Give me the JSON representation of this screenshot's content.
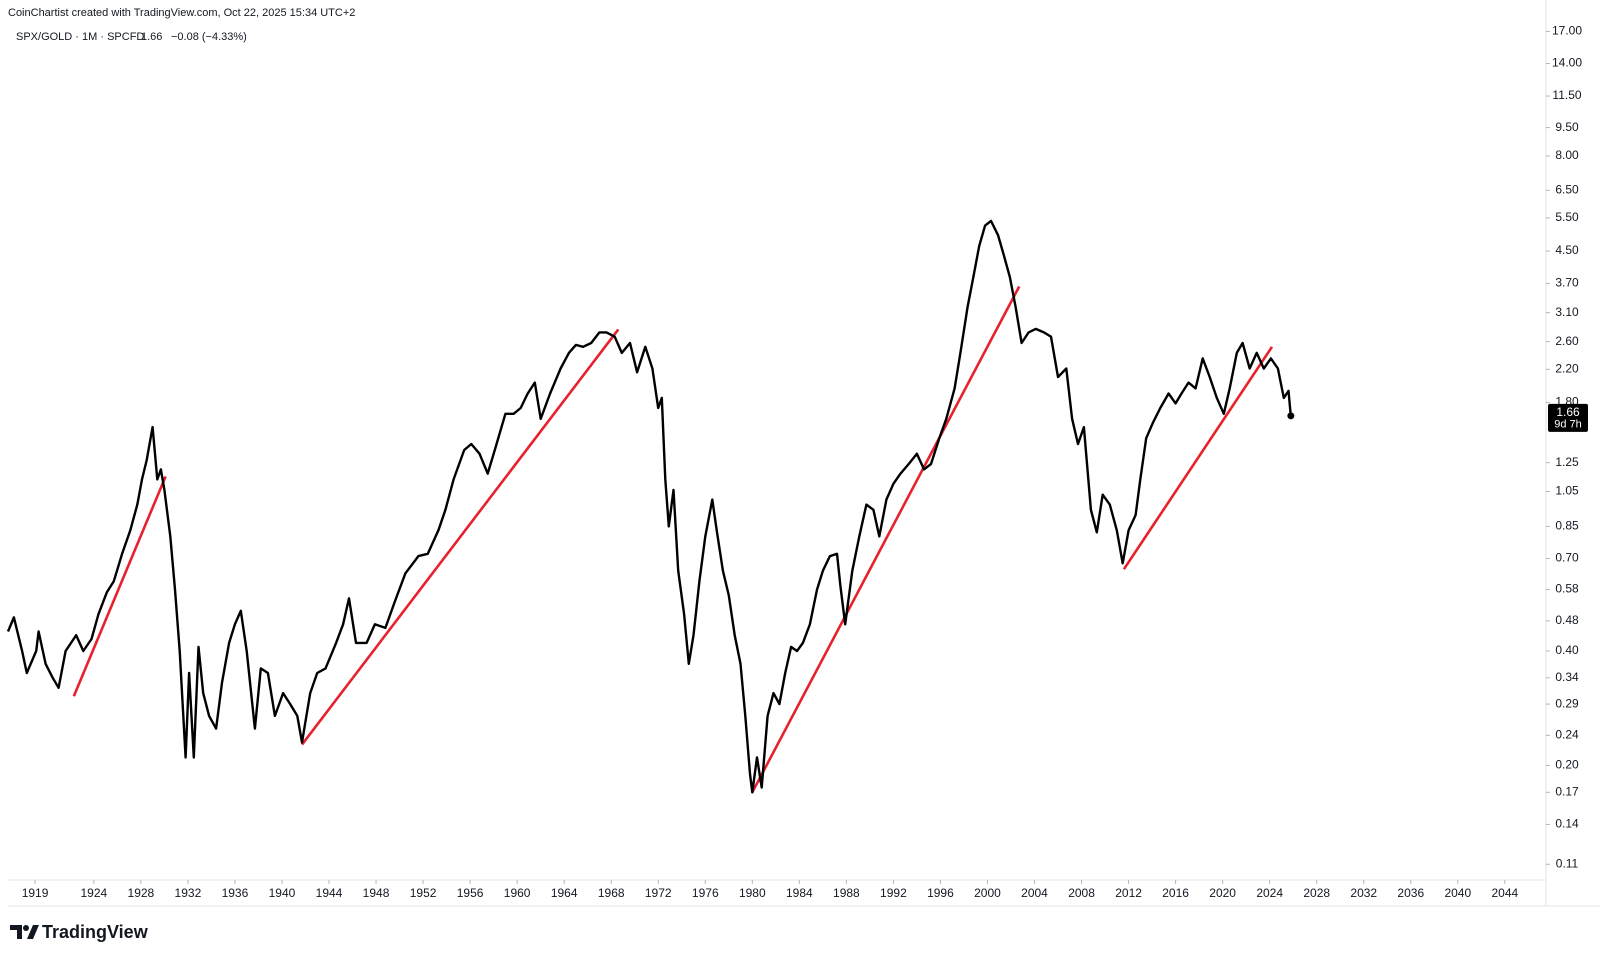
{
  "chart_data": {
    "type": "line",
    "credit": "CoinChartist created with TradingView.com, Oct 22, 2025 15:34 UTC+2",
    "title": "SPX/GOLD · 1M · SPCFD",
    "last": 1.66,
    "change": "−0.08 (−4.33%)",
    "countdown": "9d 7h",
    "brand": "TradingView",
    "log_scale": true,
    "xlim": [
      1916.7,
      2047.5
    ],
    "ylim": [
      0.1,
      18
    ],
    "xticks": [
      1919,
      1924,
      1928,
      1932,
      1936,
      1940,
      1944,
      1948,
      1952,
      1956,
      1960,
      1964,
      1968,
      1972,
      1976,
      1980,
      1984,
      1988,
      1992,
      1996,
      2000,
      2004,
      2008,
      2012,
      2016,
      2020,
      2024,
      2028,
      2032,
      2036,
      2040,
      2044
    ],
    "yticks": [
      {
        "value": 17,
        "label": "17.00"
      },
      {
        "value": 14,
        "label": "14.00"
      },
      {
        "value": 11.5,
        "label": "11.50"
      },
      {
        "value": 9.5,
        "label": "9.50"
      },
      {
        "value": 8,
        "label": "8.00"
      },
      {
        "value": 6.5,
        "label": "6.50"
      },
      {
        "value": 5.5,
        "label": "5.50"
      },
      {
        "value": 4.5,
        "label": "4.50"
      },
      {
        "value": 3.7,
        "label": "3.70"
      },
      {
        "value": 3.1,
        "label": "3.10"
      },
      {
        "value": 2.6,
        "label": "2.60"
      },
      {
        "value": 2.2,
        "label": "2.20"
      },
      {
        "value": 1.8,
        "label": "1.80"
      },
      1.25,
      1.05,
      0.85,
      {
        "value": 0.7,
        "label": "0.70"
      },
      0.58,
      0.48,
      {
        "value": 0.4,
        "label": "0.40"
      },
      0.34,
      0.29,
      0.24,
      {
        "value": 0.2,
        "label": "0.20"
      },
      0.17,
      0.14,
      0.11
    ],
    "series": [
      {
        "name": "SPX/GOLD",
        "color": "#000000",
        "x": [
          1916.7,
          1917.2,
          1917.9,
          1918.3,
          1919.1,
          1919.3,
          1919.9,
          1920.5,
          1921.0,
          1921.6,
          1922.5,
          1923.1,
          1923.8,
          1924.4,
          1925.1,
          1925.7,
          1926.4,
          1927.1,
          1927.7,
          1928.1,
          1928.5,
          1929.0,
          1929.4,
          1929.7,
          1930.0,
          1930.5,
          1930.9,
          1931.3,
          1931.8,
          1932.1,
          1932.5,
          1932.9,
          1933.3,
          1933.8,
          1934.4,
          1934.9,
          1935.5,
          1936.0,
          1936.5,
          1937.0,
          1937.7,
          1938.2,
          1938.8,
          1939.4,
          1940.1,
          1940.7,
          1941.3,
          1941.7,
          1942.4,
          1943.0,
          1943.7,
          1944.6,
          1945.2,
          1945.7,
          1946.3,
          1947.2,
          1947.9,
          1948.8,
          1949.6,
          1950.5,
          1951.6,
          1952.4,
          1953.3,
          1953.9,
          1954.6,
          1955.5,
          1956.1,
          1956.8,
          1957.5,
          1958.1,
          1959.0,
          1959.7,
          1960.3,
          1960.9,
          1961.5,
          1962.0,
          1962.8,
          1963.7,
          1964.4,
          1965.0,
          1965.6,
          1966.3,
          1967.0,
          1967.6,
          1968.3,
          1968.9,
          1969.6,
          1970.2,
          1970.9,
          1971.5,
          1972.0,
          1972.3,
          1972.6,
          1972.9,
          1973.3,
          1973.7,
          1974.2,
          1974.6,
          1975.0,
          1975.5,
          1976.0,
          1976.6,
          1977.0,
          1977.5,
          1978.0,
          1978.5,
          1979.0,
          1979.4,
          1979.8,
          1980.0,
          1980.4,
          1980.8,
          1981.3,
          1981.8,
          1982.3,
          1982.8,
          1983.3,
          1983.8,
          1984.3,
          1984.9,
          1985.5,
          1986.0,
          1986.6,
          1987.2,
          1987.5,
          1987.9,
          1988.5,
          1989.1,
          1989.7,
          1990.3,
          1990.8,
          1991.4,
          1992.0,
          1992.6,
          1993.3,
          1994.0,
          1994.6,
          1995.2,
          1995.9,
          1996.5,
          1997.2,
          1997.7,
          1998.3,
          1998.8,
          1999.3,
          1999.8,
          2000.3,
          2000.9,
          2001.4,
          2001.9,
          2002.4,
          2002.9,
          2003.5,
          2004.1,
          2004.8,
          2005.4,
          2006.0,
          2006.7,
          2007.2,
          2007.7,
          2008.2,
          2008.8,
          2009.3,
          2009.8,
          2010.4,
          2011.0,
          2011.5,
          2012.0,
          2012.6,
          2013.0,
          2013.5,
          2014.1,
          2014.7,
          2015.4,
          2016.0,
          2016.5,
          2017.1,
          2017.7,
          2018.3,
          2018.9,
          2019.5,
          2020.1,
          2020.6,
          2021.2,
          2021.7,
          2022.3,
          2022.9,
          2023.5,
          2024.1,
          2024.7,
          2025.2,
          2025.6,
          2025.8
        ],
        "values": [
          0.45,
          0.49,
          0.4,
          0.35,
          0.4,
          0.45,
          0.37,
          0.34,
          0.32,
          0.4,
          0.44,
          0.4,
          0.43,
          0.5,
          0.57,
          0.61,
          0.72,
          0.83,
          0.97,
          1.13,
          1.27,
          1.55,
          1.13,
          1.2,
          1.06,
          0.8,
          0.58,
          0.4,
          0.21,
          0.35,
          0.21,
          0.41,
          0.31,
          0.27,
          0.25,
          0.33,
          0.42,
          0.47,
          0.51,
          0.4,
          0.25,
          0.36,
          0.35,
          0.27,
          0.31,
          0.29,
          0.27,
          0.23,
          0.31,
          0.35,
          0.36,
          0.42,
          0.47,
          0.55,
          0.42,
          0.42,
          0.47,
          0.46,
          0.54,
          0.64,
          0.71,
          0.72,
          0.83,
          0.94,
          1.13,
          1.35,
          1.4,
          1.32,
          1.17,
          1.35,
          1.68,
          1.68,
          1.74,
          1.9,
          2.03,
          1.63,
          1.9,
          2.21,
          2.43,
          2.55,
          2.52,
          2.58,
          2.75,
          2.75,
          2.68,
          2.43,
          2.58,
          2.16,
          2.52,
          2.21,
          1.74,
          1.85,
          1.13,
          0.85,
          1.06,
          0.65,
          0.5,
          0.37,
          0.44,
          0.61,
          0.8,
          1.0,
          0.82,
          0.65,
          0.56,
          0.44,
          0.37,
          0.27,
          0.19,
          0.17,
          0.21,
          0.175,
          0.27,
          0.31,
          0.29,
          0.35,
          0.41,
          0.4,
          0.42,
          0.47,
          0.58,
          0.65,
          0.71,
          0.72,
          0.59,
          0.47,
          0.65,
          0.8,
          0.97,
          0.94,
          0.8,
          1.0,
          1.1,
          1.17,
          1.24,
          1.32,
          1.2,
          1.24,
          1.45,
          1.63,
          1.96,
          2.43,
          3.2,
          3.85,
          4.64,
          5.25,
          5.4,
          4.95,
          4.38,
          3.85,
          3.2,
          2.58,
          2.75,
          2.81,
          2.75,
          2.68,
          2.1,
          2.21,
          1.63,
          1.4,
          1.55,
          0.94,
          0.82,
          1.03,
          0.97,
          0.83,
          0.68,
          0.83,
          0.91,
          1.13,
          1.45,
          1.6,
          1.74,
          1.9,
          1.79,
          1.9,
          2.03,
          1.96,
          2.35,
          2.1,
          1.85,
          1.68,
          1.96,
          2.43,
          2.58,
          2.21,
          2.43,
          2.21,
          2.35,
          2.21,
          1.85,
          1.93,
          1.66
        ]
      }
    ],
    "trendlines": [
      {
        "color": "#e8212e",
        "x": [
          1922.3,
          1930.1
        ],
        "values": [
          0.304,
          1.15
        ]
      },
      {
        "color": "#e8212e",
        "x": [
          1941.7,
          1968.6
        ],
        "values": [
          0.227,
          2.8
        ]
      },
      {
        "color": "#e8212e",
        "x": [
          1980.0,
          2002.7
        ],
        "values": [
          0.17,
          3.63
        ]
      },
      {
        "color": "#e8212e",
        "x": [
          2011.6,
          2024.2
        ],
        "values": [
          0.656,
          2.52
        ]
      }
    ]
  }
}
